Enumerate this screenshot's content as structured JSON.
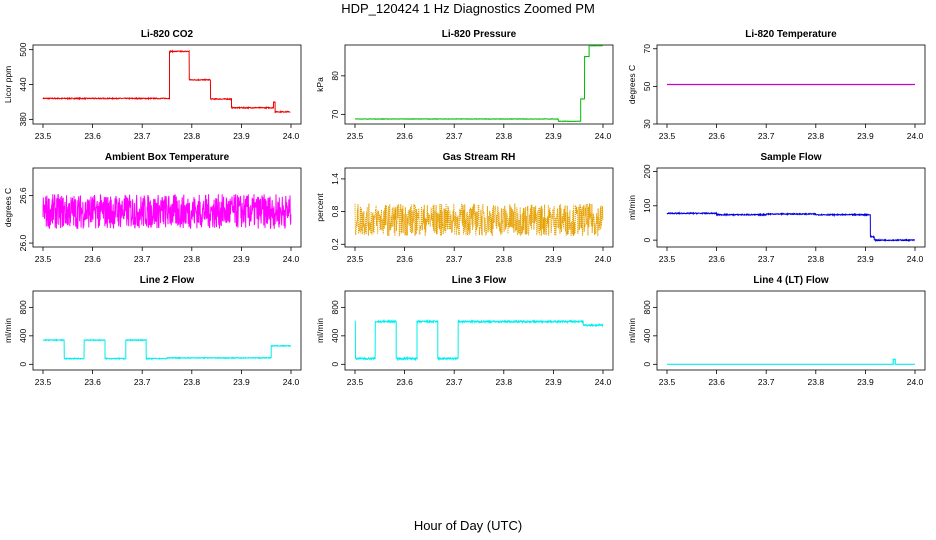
{
  "title": "HDP_120424  1 Hz Diagnostics Zoomed PM",
  "footer_label": "Hour of Day (UTC)",
  "chart_data": [
    {
      "type": "line",
      "title": "Li-820 CO2",
      "ylabel": "Licor ppm",
      "color": "#ee0000",
      "noise": 0.8,
      "xlim": [
        23.5,
        24.0
      ],
      "xticks": [
        23.5,
        23.6,
        23.7,
        23.8,
        23.9,
        24.0
      ],
      "xtick_labels": [
        "23.5",
        "23.6",
        "23.7",
        "23.8",
        "23.9",
        "24.0"
      ],
      "ylim": [
        372,
        508
      ],
      "yticks": [
        380,
        440,
        500
      ],
      "ytick_labels": [
        "380",
        "440",
        "500"
      ],
      "segments": [
        [
          23.5,
          23.755,
          416
        ],
        [
          23.755,
          23.795,
          497
        ],
        [
          23.795,
          23.838,
          448
        ],
        [
          23.838,
          23.88,
          415
        ],
        [
          23.88,
          23.965,
          400
        ],
        [
          23.965,
          23.968,
          410
        ],
        [
          23.968,
          23.999,
          393
        ]
      ]
    },
    {
      "type": "line",
      "title": "Li-820 Pressure",
      "ylabel": "kPa",
      "color": "#00bb00",
      "noise": 0.05,
      "xlim": [
        23.5,
        24.0
      ],
      "xticks": [
        23.5,
        23.6,
        23.7,
        23.8,
        23.9,
        24.0
      ],
      "xtick_labels": [
        "23.5",
        "23.6",
        "23.7",
        "23.8",
        "23.9",
        "24.0"
      ],
      "ylim": [
        67.5,
        88
      ],
      "yticks": [
        70,
        80
      ],
      "ytick_labels": [
        "70",
        "80"
      ],
      "segments": [
        [
          23.5,
          23.91,
          68.8
        ],
        [
          23.91,
          23.955,
          68.2
        ],
        [
          23.955,
          23.963,
          74
        ],
        [
          23.963,
          23.972,
          85
        ],
        [
          23.972,
          24.0,
          87.8
        ]
      ]
    },
    {
      "type": "line",
      "title": "Li-820 Temperature",
      "ylabel": "degrees C",
      "color": "#cc00cc",
      "noise": 0,
      "xlim": [
        23.5,
        24.0
      ],
      "xticks": [
        23.5,
        23.6,
        23.7,
        23.8,
        23.9,
        24.0
      ],
      "xtick_labels": [
        "23.5",
        "23.6",
        "23.7",
        "23.8",
        "23.9",
        "24.0"
      ],
      "ylim": [
        30,
        72
      ],
      "yticks": [
        30,
        50,
        70
      ],
      "ytick_labels": [
        "30",
        "50",
        "70"
      ],
      "segments": [
        [
          23.5,
          24.0,
          51
        ]
      ]
    },
    {
      "type": "line",
      "title": "Ambient Box Temperature",
      "ylabel": "degrees C",
      "color": "#ff00ff",
      "noise": 0.22,
      "xlim": [
        23.5,
        24.0
      ],
      "xticks": [
        23.5,
        23.6,
        23.7,
        23.8,
        23.9,
        24.0
      ],
      "xtick_labels": [
        "23.5",
        "23.6",
        "23.7",
        "23.8",
        "23.9",
        "24.0"
      ],
      "ylim": [
        25.95,
        26.95
      ],
      "yticks": [
        26.0,
        26.6
      ],
      "ytick_labels": [
        "26.0",
        "26.6"
      ],
      "segments": [
        [
          23.5,
          24.0,
          26.4
        ]
      ]
    },
    {
      "type": "line",
      "title": "Gas Stream RH",
      "ylabel": "percent",
      "color": "#e6a000",
      "noise": 0.3,
      "dotted": true,
      "xlim": [
        23.5,
        24.0
      ],
      "xticks": [
        23.5,
        23.6,
        23.7,
        23.8,
        23.9,
        24.0
      ],
      "xtick_labels": [
        "23.5",
        "23.6",
        "23.7",
        "23.8",
        "23.9",
        "24.0"
      ],
      "ylim": [
        0.15,
        1.6
      ],
      "yticks": [
        0.2,
        0.8,
        1.4
      ],
      "ytick_labels": [
        "0.2",
        "0.8",
        "1.4"
      ],
      "segments": [
        [
          23.5,
          24.0,
          0.65
        ]
      ]
    },
    {
      "type": "line",
      "title": "Sample Flow",
      "ylabel": "ml/min",
      "color": "#0000dd",
      "noise": 1.5,
      "xlim": [
        23.5,
        24.0
      ],
      "xticks": [
        23.5,
        23.6,
        23.7,
        23.8,
        23.9,
        24.0
      ],
      "xtick_labels": [
        "23.5",
        "23.6",
        "23.7",
        "23.8",
        "23.9",
        "24.0"
      ],
      "ylim": [
        -20,
        210
      ],
      "yticks": [
        0,
        100,
        200
      ],
      "ytick_labels": [
        "0",
        "100",
        "200"
      ],
      "segments": [
        [
          23.5,
          23.6,
          78
        ],
        [
          23.6,
          23.7,
          74
        ],
        [
          23.7,
          23.8,
          76
        ],
        [
          23.8,
          23.91,
          74
        ],
        [
          23.91,
          23.918,
          10
        ],
        [
          23.918,
          24.0,
          0
        ]
      ]
    },
    {
      "type": "line",
      "title": "Line 2 Flow",
      "ylabel": "ml/min",
      "color": "#00eeee",
      "noise": 6,
      "xlim": [
        23.5,
        24.0
      ],
      "xticks": [
        23.5,
        23.6,
        23.7,
        23.8,
        23.9,
        24.0
      ],
      "xtick_labels": [
        "23.5",
        "23.6",
        "23.7",
        "23.8",
        "23.9",
        "24.0"
      ],
      "ylim": [
        -80,
        1030
      ],
      "yticks": [
        0,
        400,
        800
      ],
      "ytick_labels": [
        "0",
        "400",
        "800"
      ],
      "segments": [
        [
          23.5,
          23.543,
          340
        ],
        [
          23.543,
          23.583,
          80
        ],
        [
          23.583,
          23.625,
          340
        ],
        [
          23.625,
          23.667,
          80
        ],
        [
          23.667,
          23.708,
          340
        ],
        [
          23.708,
          23.75,
          80
        ],
        [
          23.75,
          23.96,
          90
        ],
        [
          23.96,
          24.0,
          260
        ]
      ]
    },
    {
      "type": "line",
      "title": "Line 3 Flow",
      "ylabel": "ml/min",
      "color": "#00eeee",
      "noise": 12,
      "xlim": [
        23.5,
        24.0
      ],
      "xticks": [
        23.5,
        23.6,
        23.7,
        23.8,
        23.9,
        24.0
      ],
      "xtick_labels": [
        "23.5",
        "23.6",
        "23.7",
        "23.8",
        "23.9",
        "24.0"
      ],
      "ylim": [
        -80,
        1030
      ],
      "yticks": [
        0,
        400,
        800
      ],
      "ytick_labels": [
        "0",
        "400",
        "800"
      ],
      "segments": [
        [
          23.5,
          23.501,
          600
        ],
        [
          23.501,
          23.541,
          80
        ],
        [
          23.541,
          23.583,
          600
        ],
        [
          23.583,
          23.625,
          80
        ],
        [
          23.625,
          23.667,
          600
        ],
        [
          23.667,
          23.708,
          80
        ],
        [
          23.708,
          23.96,
          600
        ],
        [
          23.96,
          24.0,
          550
        ]
      ]
    },
    {
      "type": "line",
      "title": "Line 4 (LT) Flow",
      "ylabel": "ml/min",
      "color": "#00eeee",
      "noise": 0,
      "xlim": [
        23.5,
        24.0
      ],
      "xticks": [
        23.5,
        23.6,
        23.7,
        23.8,
        23.9,
        24.0
      ],
      "xtick_labels": [
        "23.5",
        "23.6",
        "23.7",
        "23.8",
        "23.9",
        "24.0"
      ],
      "ylim": [
        -80,
        1030
      ],
      "yticks": [
        0,
        400,
        800
      ],
      "ytick_labels": [
        "0",
        "400",
        "800"
      ],
      "segments": [
        [
          23.5,
          23.956,
          0
        ],
        [
          23.956,
          23.96,
          70
        ],
        [
          23.96,
          24.0,
          0
        ]
      ]
    }
  ]
}
